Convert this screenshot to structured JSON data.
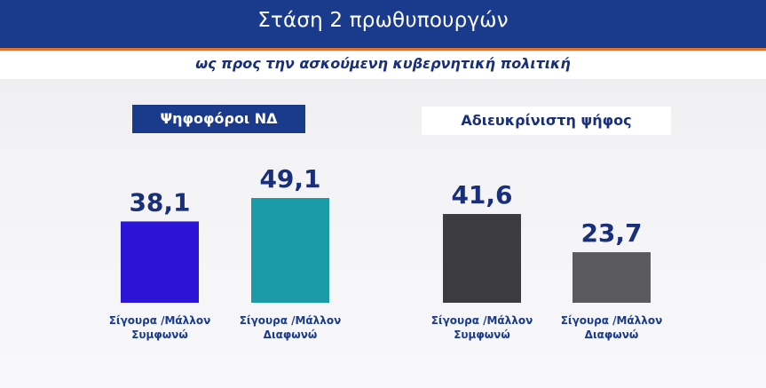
{
  "header": {
    "title": "Στάση 2 πρωθυπουργών",
    "subtitle": "ως προς την ασκούμενη κυβερνητική πολιτική"
  },
  "colors": {
    "header_bg": "#1a3a8c",
    "accent_line": "#e8702a",
    "text_dark": "#1a2f7a"
  },
  "chart_data": {
    "type": "bar",
    "title": "Στάση 2 πρωθυπουργών",
    "subtitle": "ως προς την ασκούμενη κυβερνητική πολιτική",
    "groups": [
      {
        "name": "Ψηφοφόροι ΝΔ",
        "bars": [
          {
            "label": [
              "Σίγουρα /Μάλλον",
              "Συμφωνώ"
            ],
            "value": 38.1,
            "display": "38,1",
            "color": "#2b14d6"
          },
          {
            "label": [
              "Σίγουρα /Μάλλον",
              "Διαφωνώ"
            ],
            "value": 49.1,
            "display": "49,1",
            "color": "#1b9aa8"
          }
        ]
      },
      {
        "name": "Αδιευκρίνιστη ψήφος",
        "bars": [
          {
            "label": [
              "Σίγουρα /Μάλλον",
              "Συμφωνώ"
            ],
            "value": 41.6,
            "display": "41,6",
            "color": "#3c3c3e"
          },
          {
            "label": [
              "Σίγουρα /Μάλλον",
              "Διαφωνώ"
            ],
            "value": 23.7,
            "display": "23,7",
            "color": "#5b5b5d"
          }
        ]
      }
    ],
    "grid": false,
    "legend": "none"
  }
}
